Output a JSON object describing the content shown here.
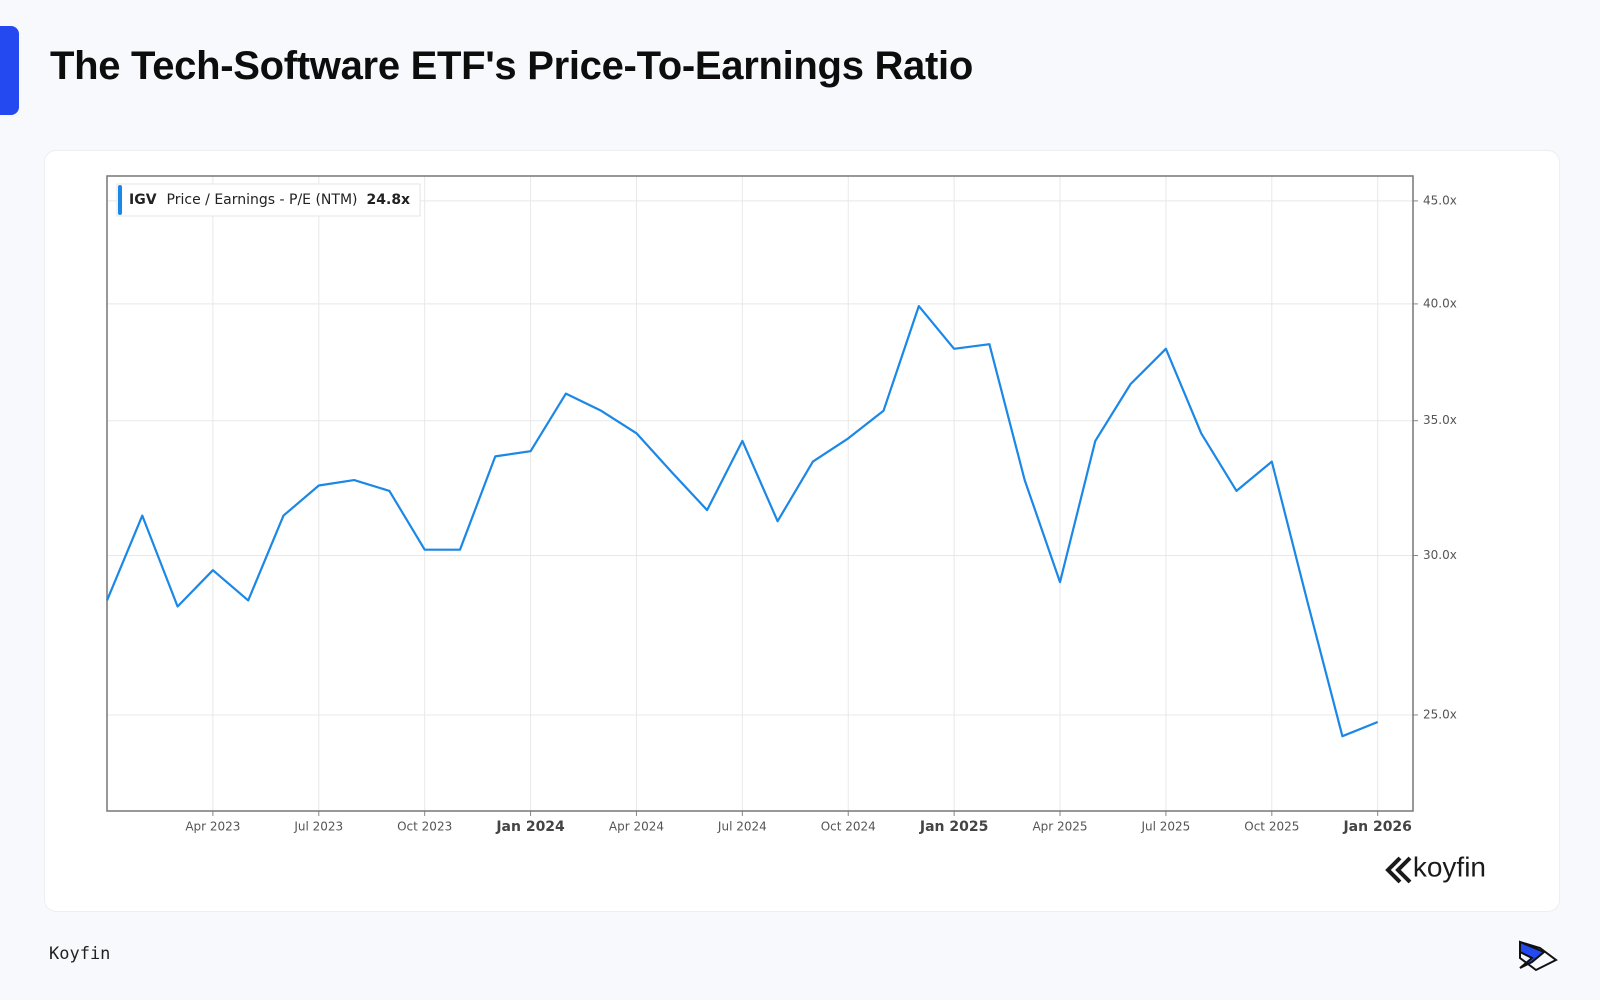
{
  "chart_data": {
    "type": "line",
    "title": "The Tech-Software ETF's Price-To-Earnings Ratio",
    "x": [
      "2023-01",
      "2023-02",
      "2023-03",
      "2023-04",
      "2023-05",
      "2023-06",
      "2023-07",
      "2023-08",
      "2023-09",
      "2023-10",
      "2023-11",
      "2023-12",
      "2024-01",
      "2024-02",
      "2024-03",
      "2024-04",
      "2024-05",
      "2024-06",
      "2024-07",
      "2024-08",
      "2024-09",
      "2024-10",
      "2024-11",
      "2024-12",
      "2025-01",
      "2025-02",
      "2025-03",
      "2025-04",
      "2025-05",
      "2025-06",
      "2025-07",
      "2025-08",
      "2025-09",
      "2025-10",
      "2025-11",
      "2025-12",
      "2026-01"
    ],
    "series": [
      {
        "name": "IGV",
        "metric": "Price / Earnings - P/E (NTM)",
        "color": "#1b87e6",
        "values": [
          28.5,
          31.4,
          28.3,
          29.5,
          28.5,
          31.4,
          32.5,
          32.7,
          32.3,
          30.2,
          30.2,
          33.6,
          33.8,
          36.1,
          35.4,
          34.5,
          33.0,
          31.6,
          34.2,
          31.2,
          33.4,
          34.3,
          35.4,
          39.9,
          38.0,
          38.2,
          32.7,
          29.1,
          34.2,
          36.5,
          38.0,
          34.5,
          32.3,
          33.4,
          28.5,
          24.4,
          24.8
        ],
        "latest": 24.8,
        "latest_label": "24.8x"
      }
    ],
    "xlim": [
      "2023-01",
      "2026-02"
    ],
    "xticks": [
      {
        "value": "2023-04",
        "label": "Apr 2023"
      },
      {
        "value": "2023-07",
        "label": "Jul 2023"
      },
      {
        "value": "2023-10",
        "label": "Oct 2023"
      },
      {
        "value": "2024-01",
        "label": "Jan 2024"
      },
      {
        "value": "2024-04",
        "label": "Apr 2024"
      },
      {
        "value": "2024-07",
        "label": "Jul 2024"
      },
      {
        "value": "2024-10",
        "label": "Oct 2024"
      },
      {
        "value": "2025-01",
        "label": "Jan 2025"
      },
      {
        "value": "2025-04",
        "label": "Apr 2025"
      },
      {
        "value": "2025-07",
        "label": "Jul 2025"
      },
      {
        "value": "2025-10",
        "label": "Oct 2025"
      },
      {
        "value": "2026-01",
        "label": "Jan 2026"
      }
    ],
    "ylim": [
      22.4,
      46.3
    ],
    "yticks": [
      {
        "value": 25,
        "label": "25.0x"
      },
      {
        "value": 30,
        "label": "30.0x"
      },
      {
        "value": 35,
        "label": "35.0x"
      },
      {
        "value": 40,
        "label": "40.0x"
      },
      {
        "value": 45,
        "label": "45.0x"
      }
    ],
    "log_scale": true,
    "grid": true,
    "legend": "upper left"
  },
  "watermark": "koyfin",
  "footer": "Koyfin"
}
